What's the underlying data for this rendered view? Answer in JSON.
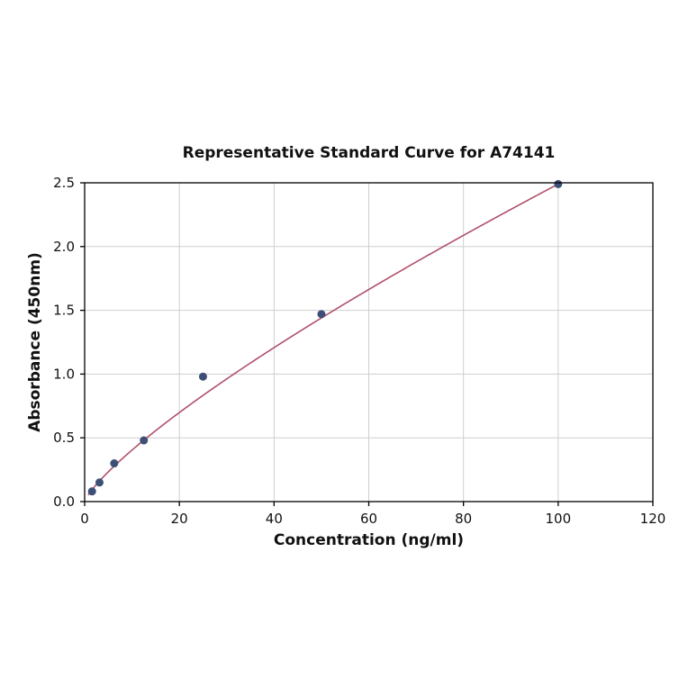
{
  "chart_data": {
    "type": "scatter",
    "title": "Representative Standard Curve for A74141",
    "xlabel": "Concentration (ng/ml)",
    "ylabel": "Absorbance (450nm)",
    "xlim": [
      0,
      120
    ],
    "ylim": [
      0,
      2.5
    ],
    "xticks": [
      0,
      20,
      40,
      60,
      80,
      100,
      120
    ],
    "xtick_labels": [
      "0",
      "20",
      "40",
      "60",
      "80",
      "100",
      "120"
    ],
    "yticks": [
      0.0,
      0.5,
      1.0,
      1.5,
      2.0,
      2.5
    ],
    "ytick_labels": [
      "0.0",
      "0.5",
      "1.0",
      "1.5",
      "2.0",
      "2.5"
    ],
    "grid": true,
    "legend": "none",
    "points": {
      "x": [
        1.56,
        3.13,
        6.25,
        12.5,
        25,
        50,
        100
      ],
      "y": [
        0.08,
        0.15,
        0.3,
        0.48,
        0.98,
        1.47,
        2.49
      ]
    },
    "fit_curve": {
      "model": "power",
      "a": 0.0655,
      "b": 0.79,
      "x_start": 0.75,
      "x_end": 100
    },
    "colors": {
      "curve": "#b0506b",
      "points": "#3d4f76",
      "grid": "#cfcfcf",
      "spine": "#000000",
      "text": "#111111"
    }
  }
}
